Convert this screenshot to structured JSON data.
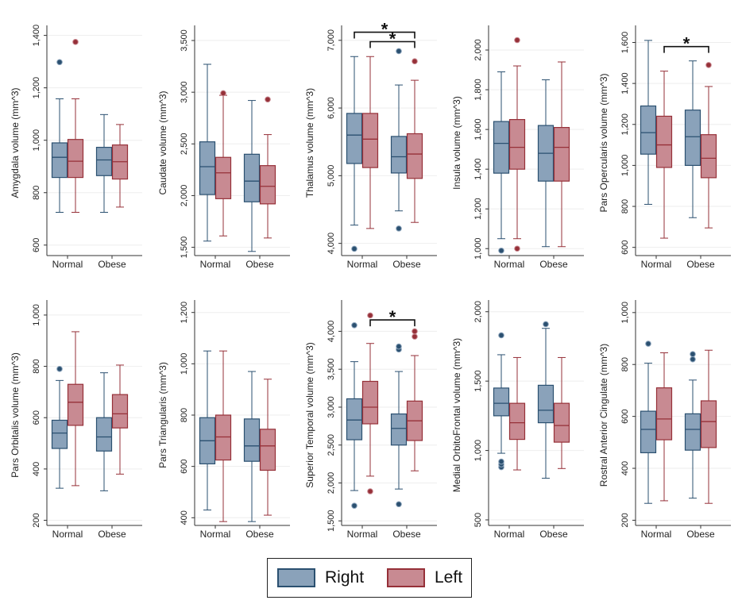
{
  "colors": {
    "right_fill": "#8aa2ba",
    "right_line": "#2b5070",
    "left_fill": "#c88a92",
    "left_line": "#963038",
    "grid": "#eeeeee",
    "axis": "#333333"
  },
  "legend": {
    "right_label": "Right",
    "left_label": "Left"
  },
  "chart_data": [
    {
      "type": "box",
      "ylabel": "Amygdala volume (mm^3)",
      "categories": [
        "Normal",
        "Obese"
      ],
      "ylim": [
        560,
        1420
      ],
      "ticks": [
        600,
        800,
        1000,
        1200,
        1400
      ],
      "tick_labels": [
        "600",
        "800",
        "1,000",
        "1,200",
        "1,400"
      ],
      "series": [
        {
          "name": "Right",
          "boxes": [
            {
              "category": "Normal",
              "min": 725,
              "q1": 858,
              "median": 935,
              "q3": 990,
              "max": 1158,
              "outliers": [
                1298
              ]
            },
            {
              "category": "Obese",
              "min": 725,
              "q1": 865,
              "median": 925,
              "q3": 973,
              "max": 1098,
              "outliers": []
            }
          ]
        },
        {
          "name": "Left",
          "boxes": [
            {
              "category": "Normal",
              "min": 725,
              "q1": 858,
              "median": 920,
              "q3": 1003,
              "max": 1158,
              "outliers": [
                1375
              ]
            },
            {
              "category": "Obese",
              "min": 745,
              "q1": 852,
              "median": 918,
              "q3": 982,
              "max": 1060,
              "outliers": []
            }
          ]
        }
      ],
      "brackets": []
    },
    {
      "type": "box",
      "ylabel": "Caudate volume (mm^3)",
      "categories": [
        "Normal",
        "Obese"
      ],
      "ylim": [
        1420,
        3600
      ],
      "ticks": [
        1500,
        2000,
        2500,
        3000,
        3500
      ],
      "tick_labels": [
        "1,500",
        "2,000",
        "2,500",
        "3,000",
        "3,500"
      ],
      "series": [
        {
          "name": "Right",
          "boxes": [
            {
              "category": "Normal",
              "min": 1560,
              "q1": 2010,
              "median": 2280,
              "q3": 2520,
              "max": 3270,
              "outliers": []
            },
            {
              "category": "Obese",
              "min": 1460,
              "q1": 1940,
              "median": 2140,
              "q3": 2400,
              "max": 2920,
              "outliers": []
            }
          ]
        },
        {
          "name": "Left",
          "boxes": [
            {
              "category": "Normal",
              "min": 1610,
              "q1": 1970,
              "median": 2220,
              "q3": 2370,
              "max": 2970,
              "outliers": [
                2990
              ]
            },
            {
              "category": "Obese",
              "min": 1590,
              "q1": 1920,
              "median": 2090,
              "q3": 2290,
              "max": 2590,
              "outliers": [
                2930
              ]
            }
          ]
        }
      ],
      "brackets": []
    },
    {
      "type": "box",
      "ylabel": "Thalamus volume (mm^3)",
      "categories": [
        "Normal",
        "Obese"
      ],
      "ylim": [
        3820,
        7150
      ],
      "ticks": [
        4000,
        5000,
        6000,
        7000
      ],
      "tick_labels": [
        "4,000",
        "5,000",
        "6,000",
        "7,000"
      ],
      "series": [
        {
          "name": "Right",
          "boxes": [
            {
              "category": "Normal",
              "min": 4270,
              "q1": 5180,
              "median": 5600,
              "q3": 5920,
              "max": 6760,
              "outliers": [
                3920
              ]
            },
            {
              "category": "Obese",
              "min": 4480,
              "q1": 5040,
              "median": 5280,
              "q3": 5580,
              "max": 6340,
              "outliers": [
                4220,
                6840
              ]
            }
          ]
        },
        {
          "name": "Left",
          "boxes": [
            {
              "category": "Normal",
              "min": 4220,
              "q1": 5120,
              "median": 5540,
              "q3": 5920,
              "max": 6760,
              "outliers": []
            },
            {
              "category": "Obese",
              "min": 4310,
              "q1": 4960,
              "median": 5320,
              "q3": 5620,
              "max": 6410,
              "outliers": [
                6690
              ]
            }
          ]
        }
      ],
      "brackets": [
        {
          "from": [
            "Normal",
            "Right"
          ],
          "to": [
            "Obese",
            "Left"
          ],
          "y": 7120,
          "label": "*"
        },
        {
          "from": [
            "Normal",
            "Left"
          ],
          "to": [
            "Obese",
            "Left"
          ],
          "y": 6980,
          "label": "*"
        }
      ]
    },
    {
      "type": "box",
      "ylabel": "Insula volume (mm^3)",
      "categories": [
        "Normal",
        "Obese"
      ],
      "ylim": [
        965,
        2100
      ],
      "ticks": [
        1000,
        1200,
        1400,
        1600,
        1800,
        2000
      ],
      "tick_labels": [
        "1,000",
        "1,200",
        "1,400",
        "1,600",
        "1,800",
        "2,000"
      ],
      "series": [
        {
          "name": "Right",
          "boxes": [
            {
              "category": "Normal",
              "min": 1050,
              "q1": 1380,
              "median": 1530,
              "q3": 1640,
              "max": 1890,
              "outliers": [
                990
              ]
            },
            {
              "category": "Obese",
              "min": 1010,
              "q1": 1340,
              "median": 1480,
              "q3": 1620,
              "max": 1850,
              "outliers": []
            }
          ]
        },
        {
          "name": "Left",
          "boxes": [
            {
              "category": "Normal",
              "min": 1050,
              "q1": 1400,
              "median": 1510,
              "q3": 1650,
              "max": 1920,
              "outliers": [
                1000,
                2050
              ]
            },
            {
              "category": "Obese",
              "min": 1010,
              "q1": 1340,
              "median": 1510,
              "q3": 1610,
              "max": 1940,
              "outliers": []
            }
          ]
        }
      ],
      "brackets": []
    },
    {
      "type": "box",
      "ylabel": "Pars Opercularis volume (mm^3)",
      "categories": [
        "Normal",
        "Obese"
      ],
      "ylim": [
        560,
        1660
      ],
      "ticks": [
        600,
        800,
        1000,
        1200,
        1400,
        1600
      ],
      "tick_labels": [
        "600",
        "800",
        "1,000",
        "1,200",
        "1,400",
        "1,600"
      ],
      "series": [
        {
          "name": "Right",
          "boxes": [
            {
              "category": "Normal",
              "min": 810,
              "q1": 1055,
              "median": 1160,
              "q3": 1290,
              "max": 1610,
              "outliers": []
            },
            {
              "category": "Obese",
              "min": 745,
              "q1": 1000,
              "median": 1140,
              "q3": 1270,
              "max": 1510,
              "outliers": []
            }
          ]
        },
        {
          "name": "Left",
          "boxes": [
            {
              "category": "Normal",
              "min": 645,
              "q1": 990,
              "median": 1100,
              "q3": 1240,
              "max": 1460,
              "outliers": []
            },
            {
              "category": "Obese",
              "min": 695,
              "q1": 940,
              "median": 1035,
              "q3": 1150,
              "max": 1385,
              "outliers": [
                1490
              ]
            }
          ]
        }
      ],
      "brackets": [
        {
          "from": [
            "Normal",
            "Left"
          ],
          "to": [
            "Obese",
            "Left"
          ],
          "y": 1580,
          "label": "*"
        }
      ]
    },
    {
      "type": "box",
      "ylabel": "Pars Orbitalis volume (mm^3)",
      "categories": [
        "Normal",
        "Obese"
      ],
      "ylim": [
        180,
        1040
      ],
      "ticks": [
        200,
        400,
        600,
        800,
        1000
      ],
      "tick_labels": [
        "200",
        "400",
        "600",
        "800",
        "1,000"
      ],
      "series": [
        {
          "name": "Right",
          "boxes": [
            {
              "category": "Normal",
              "min": 325,
              "q1": 480,
              "median": 540,
              "q3": 590,
              "max": 745,
              "outliers": [
                790
              ]
            },
            {
              "category": "Obese",
              "min": 315,
              "q1": 470,
              "median": 525,
              "q3": 600,
              "max": 775,
              "outliers": []
            }
          ]
        },
        {
          "name": "Left",
          "boxes": [
            {
              "category": "Normal",
              "min": 335,
              "q1": 570,
              "median": 660,
              "q3": 730,
              "max": 935,
              "outliers": []
            },
            {
              "category": "Obese",
              "min": 380,
              "q1": 560,
              "median": 615,
              "q3": 690,
              "max": 805,
              "outliers": []
            }
          ]
        }
      ],
      "brackets": []
    },
    {
      "type": "box",
      "ylabel": "Pars Triangularis (mm^3)",
      "categories": [
        "Normal",
        "Obese"
      ],
      "ylim": [
        370,
        1230
      ],
      "ticks": [
        400,
        600,
        800,
        1000,
        1200
      ],
      "tick_labels": [
        "400",
        "600",
        "800",
        "1,000",
        "1,200"
      ],
      "series": [
        {
          "name": "Right",
          "boxes": [
            {
              "category": "Normal",
              "min": 430,
              "q1": 610,
              "median": 700,
              "q3": 790,
              "max": 1050,
              "outliers": []
            },
            {
              "category": "Obese",
              "min": 385,
              "q1": 620,
              "median": 680,
              "q3": 785,
              "max": 970,
              "outliers": []
            }
          ]
        },
        {
          "name": "Left",
          "boxes": [
            {
              "category": "Normal",
              "min": 385,
              "q1": 625,
              "median": 715,
              "q3": 800,
              "max": 1050,
              "outliers": []
            },
            {
              "category": "Obese",
              "min": 410,
              "q1": 585,
              "median": 680,
              "q3": 745,
              "max": 940,
              "outliers": []
            }
          ]
        }
      ],
      "brackets": []
    },
    {
      "type": "box",
      "ylabel": "Superior Temporal volume (mm^3)",
      "categories": [
        "Normal",
        "Obese"
      ],
      "ylim": [
        1440,
        4350
      ],
      "ticks": [
        1500,
        2000,
        2500,
        3000,
        3500,
        4000
      ],
      "tick_labels": [
        "1,500",
        "2,000",
        "2,500",
        "3,000",
        "3,500",
        "4,000"
      ],
      "series": [
        {
          "name": "Right",
          "boxes": [
            {
              "category": "Normal",
              "min": 1900,
              "q1": 2570,
              "median": 2830,
              "q3": 3110,
              "max": 3600,
              "outliers": [
                1700,
                4080
              ]
            },
            {
              "category": "Obese",
              "min": 1920,
              "q1": 2500,
              "median": 2720,
              "q3": 2910,
              "max": 3470,
              "outliers": [
                1720,
                3760,
                3800
              ]
            }
          ]
        },
        {
          "name": "Left",
          "boxes": [
            {
              "category": "Normal",
              "min": 2090,
              "q1": 2780,
              "median": 3000,
              "q3": 3340,
              "max": 3840,
              "outliers": [
                1890,
                4210
              ]
            },
            {
              "category": "Obese",
              "min": 2160,
              "q1": 2560,
              "median": 2820,
              "q3": 3080,
              "max": 3680,
              "outliers": [
                3930,
                4000
              ]
            }
          ]
        }
      ],
      "brackets": [
        {
          "from": [
            "Normal",
            "Left"
          ],
          "to": [
            "Obese",
            "Left"
          ],
          "y": 4150,
          "label": "*"
        }
      ]
    },
    {
      "type": "box",
      "ylabel": "Medial OrbitoFrontal volume (mm^3)",
      "categories": [
        "Normal",
        "Obese"
      ],
      "ylim": [
        460,
        2050
      ],
      "ticks": [
        500,
        1000,
        1500,
        2000
      ],
      "tick_labels": [
        "500",
        "1,000",
        "1,500",
        "2,000"
      ],
      "series": [
        {
          "name": "Right",
          "boxes": [
            {
              "category": "Normal",
              "min": 980,
              "q1": 1250,
              "median": 1340,
              "q3": 1450,
              "max": 1690,
              "outliers": [
                880,
                900,
                920,
                1830
              ]
            },
            {
              "category": "Obese",
              "min": 800,
              "q1": 1200,
              "median": 1290,
              "q3": 1470,
              "max": 1880,
              "outliers": [
                1910
              ]
            }
          ]
        },
        {
          "name": "Left",
          "boxes": [
            {
              "category": "Normal",
              "min": 860,
              "q1": 1080,
              "median": 1200,
              "q3": 1340,
              "max": 1670,
              "outliers": []
            },
            {
              "category": "Obese",
              "min": 870,
              "q1": 1060,
              "median": 1180,
              "q3": 1340,
              "max": 1670,
              "outliers": []
            }
          ]
        }
      ],
      "brackets": []
    },
    {
      "type": "box",
      "ylabel": "Rostral Anterior Cingulate (mm^3)",
      "categories": [
        "Normal",
        "Obese"
      ],
      "ylim": [
        180,
        1030
      ],
      "ticks": [
        200,
        400,
        600,
        800,
        1000
      ],
      "tick_labels": [
        "200",
        "400",
        "600",
        "800",
        "1,000"
      ],
      "series": [
        {
          "name": "Right",
          "boxes": [
            {
              "category": "Normal",
              "min": 265,
              "q1": 460,
              "median": 550,
              "q3": 620,
              "max": 805,
              "outliers": [
                880
              ]
            },
            {
              "category": "Obese",
              "min": 285,
              "q1": 470,
              "median": 550,
              "q3": 610,
              "max": 740,
              "outliers": [
                820,
                840
              ]
            }
          ]
        },
        {
          "name": "Left",
          "boxes": [
            {
              "category": "Normal",
              "min": 275,
              "q1": 510,
              "median": 590,
              "q3": 710,
              "max": 845,
              "outliers": []
            },
            {
              "category": "Obese",
              "min": 265,
              "q1": 480,
              "median": 580,
              "q3": 660,
              "max": 855,
              "outliers": []
            }
          ]
        }
      ],
      "brackets": []
    }
  ]
}
